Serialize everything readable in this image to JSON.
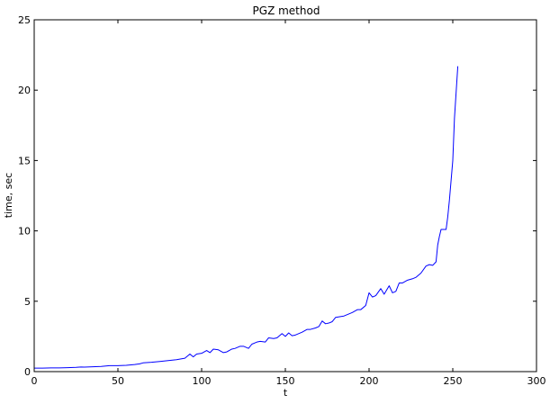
{
  "chart_data": {
    "type": "line",
    "title": "PGZ method",
    "xlabel": "t",
    "ylabel": "time, sec",
    "xlim": [
      0,
      300
    ],
    "ylim": [
      0,
      25
    ],
    "xticks": [
      "0",
      "50",
      "100",
      "150",
      "200",
      "250",
      "300"
    ],
    "yticks": [
      "0",
      "5",
      "10",
      "15",
      "20",
      "25"
    ],
    "grid": false,
    "line_color": "#0000ff",
    "series": [
      {
        "x": [
          0,
          5,
          10,
          15,
          20,
          25,
          28,
          30,
          35,
          40,
          45,
          50,
          55,
          60,
          63,
          65,
          70,
          75,
          80,
          85,
          90,
          93,
          95,
          97,
          100,
          103,
          105,
          107,
          110,
          113,
          115,
          118,
          120,
          123,
          125,
          128,
          130,
          133,
          135,
          138,
          140,
          143,
          145,
          148,
          150,
          152,
          154,
          156,
          160,
          163,
          165,
          168,
          170,
          172,
          174,
          176,
          178,
          180,
          185,
          190,
          193,
          195,
          198,
          200,
          202,
          204,
          207,
          209,
          212,
          214,
          216,
          218,
          220,
          223,
          226,
          228,
          231,
          234,
          236,
          238,
          240,
          241,
          242,
          243,
          245,
          246,
          247,
          248,
          250,
          251,
          253
        ],
        "y": [
          0.25,
          0.25,
          0.26,
          0.26,
          0.28,
          0.3,
          0.33,
          0.32,
          0.34,
          0.37,
          0.42,
          0.42,
          0.45,
          0.5,
          0.55,
          0.62,
          0.66,
          0.72,
          0.78,
          0.85,
          0.95,
          1.25,
          1.05,
          1.25,
          1.3,
          1.5,
          1.35,
          1.6,
          1.55,
          1.35,
          1.4,
          1.6,
          1.65,
          1.8,
          1.8,
          1.65,
          1.95,
          2.1,
          2.15,
          2.1,
          2.4,
          2.35,
          2.4,
          2.7,
          2.5,
          2.75,
          2.55,
          2.6,
          2.8,
          3.0,
          3.0,
          3.1,
          3.2,
          3.6,
          3.4,
          3.45,
          3.55,
          3.85,
          3.95,
          4.2,
          4.4,
          4.4,
          4.7,
          5.6,
          5.3,
          5.4,
          5.9,
          5.5,
          6.1,
          5.6,
          5.7,
          6.3,
          6.3,
          6.5,
          6.6,
          6.7,
          7.0,
          7.5,
          7.6,
          7.55,
          7.8,
          9.0,
          9.6,
          10.1,
          10.1,
          10.1,
          11.0,
          12.2,
          15.0,
          18.0,
          21.7
        ]
      }
    ]
  }
}
